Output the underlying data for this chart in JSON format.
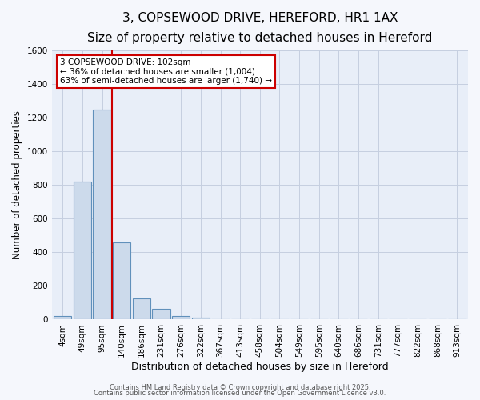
{
  "title": "3, COPSEWOOD DRIVE, HEREFORD, HR1 1AX",
  "subtitle": "Size of property relative to detached houses in Hereford",
  "xlabel": "Distribution of detached houses by size in Hereford",
  "ylabel": "Number of detached properties",
  "categories": [
    "4sqm",
    "49sqm",
    "95sqm",
    "140sqm",
    "186sqm",
    "231sqm",
    "276sqm",
    "322sqm",
    "367sqm",
    "413sqm",
    "458sqm",
    "504sqm",
    "549sqm",
    "595sqm",
    "640sqm",
    "686sqm",
    "731sqm",
    "777sqm",
    "822sqm",
    "868sqm",
    "913sqm"
  ],
  "values": [
    20,
    820,
    1245,
    460,
    125,
    62,
    22,
    12,
    0,
    0,
    0,
    0,
    0,
    0,
    0,
    0,
    0,
    0,
    0,
    0,
    0
  ],
  "bar_color": "#ccdaeb",
  "bar_edge_color": "#6090bb",
  "bar_edge_width": 0.8,
  "red_line_x": 2.5,
  "annotation_line1": "3 COPSEWOOD DRIVE: 102sqm",
  "annotation_line2": "← 36% of detached houses are smaller (1,004)",
  "annotation_line3": "63% of semi-detached houses are larger (1,740) →",
  "annotation_box_color": "#ffffff",
  "annotation_box_edge": "#cc0000",
  "red_line_color": "#cc0000",
  "ylim": [
    0,
    1600
  ],
  "yticks": [
    0,
    200,
    400,
    600,
    800,
    1000,
    1200,
    1400,
    1600
  ],
  "grid_color": "#c5cfe0",
  "background_color": "#e8eef8",
  "fig_background": "#f5f7fc",
  "footer1": "Contains HM Land Registry data © Crown copyright and database right 2025.",
  "footer2": "Contains public sector information licensed under the Open Government Licence v3.0.",
  "title_fontsize": 11,
  "subtitle_fontsize": 9,
  "xlabel_fontsize": 9,
  "ylabel_fontsize": 8.5,
  "tick_fontsize": 7.5,
  "annotation_fontsize": 7.5,
  "footer_fontsize": 6
}
